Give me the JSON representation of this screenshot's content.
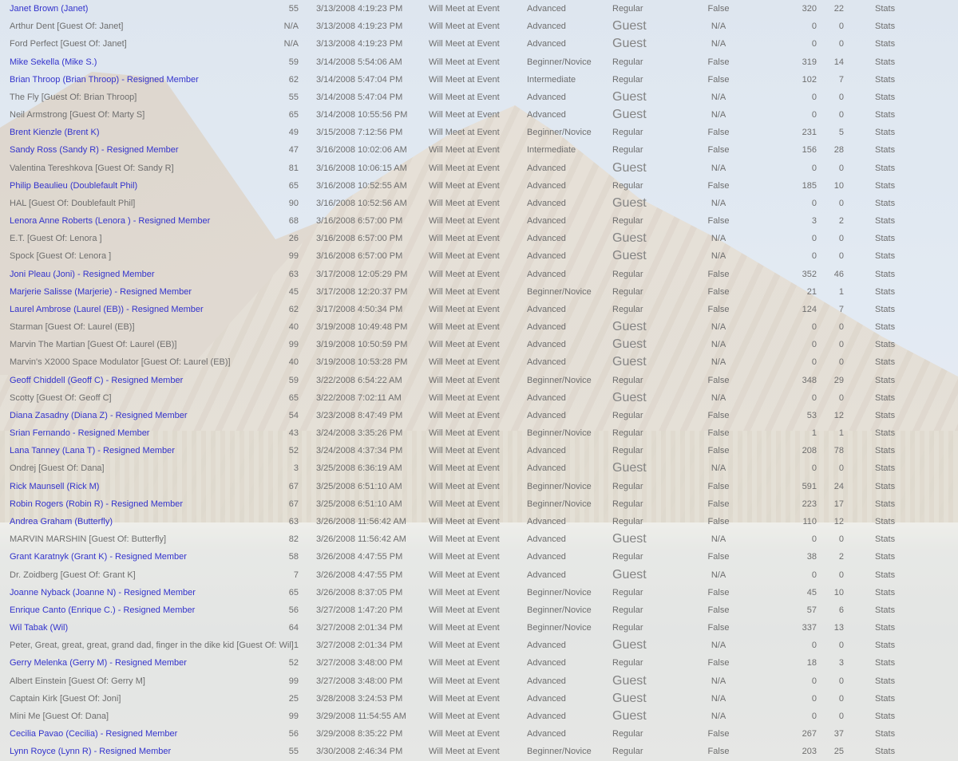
{
  "labels": {
    "stats": "Stats"
  },
  "colors": {
    "link_blue": "#3333cc",
    "stats_blue": "#2e38ad",
    "text_gray": "#6e6e6e",
    "guest_gray": "#848484"
  },
  "columns": [
    "name",
    "member",
    "age",
    "date",
    "meet_status",
    "skill_level",
    "member_type",
    "flag",
    "count1",
    "count2"
  ],
  "rows": [
    [
      "Janet Brown (Janet)",
      true,
      "55",
      "3/13/2008 4:19:23 PM",
      "Will Meet at Event",
      "Advanced",
      "Regular",
      "False",
      "320",
      "22"
    ],
    [
      "Arthur Dent [Guest Of: Janet]",
      false,
      "N/A",
      "3/13/2008 4:19:23 PM",
      "Will Meet at Event",
      "Advanced",
      "Guest",
      "N/A",
      "0",
      "0"
    ],
    [
      "Ford Perfect [Guest Of: Janet]",
      false,
      "N/A",
      "3/13/2008 4:19:23 PM",
      "Will Meet at Event",
      "Advanced",
      "Guest",
      "N/A",
      "0",
      "0"
    ],
    [
      "Mike Sekella (Mike S.)",
      true,
      "59",
      "3/14/2008 5:54:06 AM",
      "Will Meet at Event",
      "Beginner/Novice",
      "Regular",
      "False",
      "319",
      "14"
    ],
    [
      "Brian Throop (Brian Throop) - Resigned Member",
      true,
      "62",
      "3/14/2008 5:47:04 PM",
      "Will Meet at Event",
      "Intermediate",
      "Regular",
      "False",
      "102",
      "7"
    ],
    [
      "The Fly [Guest Of: Brian Throop]",
      false,
      "55",
      "3/14/2008 5:47:04 PM",
      "Will Meet at Event",
      "Advanced",
      "Guest",
      "N/A",
      "0",
      "0"
    ],
    [
      "Neil Armstrong [Guest Of: Marty S]",
      false,
      "65",
      "3/14/2008 10:55:56 PM",
      "Will Meet at Event",
      "Advanced",
      "Guest",
      "N/A",
      "0",
      "0"
    ],
    [
      "Brent Kienzle (Brent K)",
      true,
      "49",
      "3/15/2008 7:12:56 PM",
      "Will Meet at Event",
      "Beginner/Novice",
      "Regular",
      "False",
      "231",
      "5"
    ],
    [
      "Sandy Ross (Sandy R) - Resigned Member",
      true,
      "47",
      "3/16/2008 10:02:06 AM",
      "Will Meet at Event",
      "Intermediate",
      "Regular",
      "False",
      "156",
      "28"
    ],
    [
      "Valentina Tereshkova [Guest Of: Sandy R]",
      false,
      "81",
      "3/16/2008 10:06:15 AM",
      "Will Meet at Event",
      "Advanced",
      "Guest",
      "N/A",
      "0",
      "0"
    ],
    [
      "Philip Beaulieu (Doublefault Phil)",
      true,
      "65",
      "3/16/2008 10:52:55 AM",
      "Will Meet at Event",
      "Advanced",
      "Regular",
      "False",
      "185",
      "10"
    ],
    [
      "HAL [Guest Of: Doublefault Phil]",
      false,
      "90",
      "3/16/2008 10:52:56 AM",
      "Will Meet at Event",
      "Advanced",
      "Guest",
      "N/A",
      "0",
      "0"
    ],
    [
      "Lenora Anne Roberts (Lenora ) - Resigned Member",
      true,
      "68",
      "3/16/2008 6:57:00 PM",
      "Will Meet at Event",
      "Advanced",
      "Regular",
      "False",
      "3",
      "2"
    ],
    [
      "E.T. [Guest Of: Lenora ]",
      false,
      "26",
      "3/16/2008 6:57:00 PM",
      "Will Meet at Event",
      "Advanced",
      "Guest",
      "N/A",
      "0",
      "0"
    ],
    [
      "Spock [Guest Of: Lenora ]",
      false,
      "99",
      "3/16/2008 6:57:00 PM",
      "Will Meet at Event",
      "Advanced",
      "Guest",
      "N/A",
      "0",
      "0"
    ],
    [
      "Joni Pleau (Joni) - Resigned Member",
      true,
      "63",
      "3/17/2008 12:05:29 PM",
      "Will Meet at Event",
      "Advanced",
      "Regular",
      "False",
      "352",
      "46"
    ],
    [
      "Marjerie Salisse (Marjerie) - Resigned Member",
      true,
      "45",
      "3/17/2008 12:20:37 PM",
      "Will Meet at Event",
      "Beginner/Novice",
      "Regular",
      "False",
      "21",
      "1"
    ],
    [
      "Laurel Ambrose (Laurel (EB)) - Resigned Member",
      true,
      "62",
      "3/17/2008 4:50:34 PM",
      "Will Meet at Event",
      "Advanced",
      "Regular",
      "False",
      "124",
      "7"
    ],
    [
      "Starman [Guest Of: Laurel (EB)]",
      false,
      "40",
      "3/19/2008 10:49:48 PM",
      "Will Meet at Event",
      "Advanced",
      "Guest",
      "N/A",
      "0",
      "0"
    ],
    [
      "Marvin The Martian [Guest Of: Laurel (EB)]",
      false,
      "99",
      "3/19/2008 10:50:59 PM",
      "Will Meet at Event",
      "Advanced",
      "Guest",
      "N/A",
      "0",
      "0"
    ],
    [
      "Marvin's X2000 Space Modulator [Guest Of: Laurel (EB)]",
      false,
      "40",
      "3/19/2008 10:53:28 PM",
      "Will Meet at Event",
      "Advanced",
      "Guest",
      "N/A",
      "0",
      "0"
    ],
    [
      "Geoff Chiddell (Geoff C) - Resigned Member",
      true,
      "59",
      "3/22/2008 6:54:22 AM",
      "Will Meet at Event",
      "Beginner/Novice",
      "Regular",
      "False",
      "348",
      "29"
    ],
    [
      "Scotty [Guest Of: Geoff C]",
      false,
      "65",
      "3/22/2008 7:02:11 AM",
      "Will Meet at Event",
      "Advanced",
      "Guest",
      "N/A",
      "0",
      "0"
    ],
    [
      "Diana Zasadny (Diana Z) - Resigned Member",
      true,
      "54",
      "3/23/2008 8:47:49 PM",
      "Will Meet at Event",
      "Advanced",
      "Regular",
      "False",
      "53",
      "12"
    ],
    [
      "Srian Fernando - Resigned Member",
      true,
      "43",
      "3/24/2008 3:35:26 PM",
      "Will Meet at Event",
      "Beginner/Novice",
      "Regular",
      "False",
      "1",
      "1"
    ],
    [
      "Lana Tanney (Lana T) - Resigned Member",
      true,
      "52",
      "3/24/2008 4:37:34 PM",
      "Will Meet at Event",
      "Advanced",
      "Regular",
      "False",
      "208",
      "78"
    ],
    [
      "Ondrej [Guest Of: Dana]",
      false,
      "3",
      "3/25/2008 6:36:19 AM",
      "Will Meet at Event",
      "Advanced",
      "Guest",
      "N/A",
      "0",
      "0"
    ],
    [
      "Rick Maunsell (Rick M)",
      true,
      "67",
      "3/25/2008 6:51:10 AM",
      "Will Meet at Event",
      "Beginner/Novice",
      "Regular",
      "False",
      "591",
      "24"
    ],
    [
      "Robin Rogers (Robin R) - Resigned Member",
      true,
      "67",
      "3/25/2008 6:51:10 AM",
      "Will Meet at Event",
      "Beginner/Novice",
      "Regular",
      "False",
      "223",
      "17"
    ],
    [
      "Andrea Graham (Butterfly)",
      true,
      "63",
      "3/26/2008 11:56:42 AM",
      "Will Meet at Event",
      "Advanced",
      "Regular",
      "False",
      "110",
      "12"
    ],
    [
      "MARVIN MARSHIN [Guest Of: Butterfly]",
      false,
      "82",
      "3/26/2008 11:56:42 AM",
      "Will Meet at Event",
      "Advanced",
      "Guest",
      "N/A",
      "0",
      "0"
    ],
    [
      "Grant Karatnyk (Grant K) - Resigned Member",
      true,
      "58",
      "3/26/2008 4:47:55 PM",
      "Will Meet at Event",
      "Advanced",
      "Regular",
      "False",
      "38",
      "2"
    ],
    [
      "Dr. Zoidberg [Guest Of: Grant K]",
      false,
      "7",
      "3/26/2008 4:47:55 PM",
      "Will Meet at Event",
      "Advanced",
      "Guest",
      "N/A",
      "0",
      "0"
    ],
    [
      "Joanne Nyback (Joanne N) - Resigned Member",
      true,
      "65",
      "3/26/2008 8:37:05 PM",
      "Will Meet at Event",
      "Beginner/Novice",
      "Regular",
      "False",
      "45",
      "10"
    ],
    [
      "Enrique Canto (Enrique C.) - Resigned Member",
      true,
      "56",
      "3/27/2008 1:47:20 PM",
      "Will Meet at Event",
      "Beginner/Novice",
      "Regular",
      "False",
      "57",
      "6"
    ],
    [
      "Wil Tabak (Wil)",
      true,
      "64",
      "3/27/2008 2:01:34 PM",
      "Will Meet at Event",
      "Beginner/Novice",
      "Regular",
      "False",
      "337",
      "13"
    ],
    [
      "Peter, Great, great, great, grand dad, finger in the dike kid [Guest Of: Wil]",
      false,
      "1",
      "3/27/2008 2:01:34 PM",
      "Will Meet at Event",
      "Advanced",
      "Guest",
      "N/A",
      "0",
      "0"
    ],
    [
      "Gerry Melenka (Gerry M) - Resigned Member",
      true,
      "52",
      "3/27/2008 3:48:00 PM",
      "Will Meet at Event",
      "Advanced",
      "Regular",
      "False",
      "18",
      "3"
    ],
    [
      "Albert Einstein [Guest Of: Gerry M]",
      false,
      "99",
      "3/27/2008 3:48:00 PM",
      "Will Meet at Event",
      "Advanced",
      "Guest",
      "N/A",
      "0",
      "0"
    ],
    [
      "Captain Kirk [Guest Of: Joni]",
      false,
      "25",
      "3/28/2008 3:24:53 PM",
      "Will Meet at Event",
      "Advanced",
      "Guest",
      "N/A",
      "0",
      "0"
    ],
    [
      "Mini Me [Guest Of: Dana]",
      false,
      "99",
      "3/29/2008 11:54:55 AM",
      "Will Meet at Event",
      "Advanced",
      "Guest",
      "N/A",
      "0",
      "0"
    ],
    [
      "Cecilia Pavao (Cecilia) - Resigned Member",
      true,
      "56",
      "3/29/2008 8:35:22 PM",
      "Will Meet at Event",
      "Advanced",
      "Regular",
      "False",
      "267",
      "37"
    ],
    [
      "Lynn Royce (Lynn R) - Resigned Member",
      true,
      "55",
      "3/30/2008 2:46:34 PM",
      "Will Meet at Event",
      "Beginner/Novice",
      "Regular",
      "False",
      "203",
      "25"
    ]
  ]
}
